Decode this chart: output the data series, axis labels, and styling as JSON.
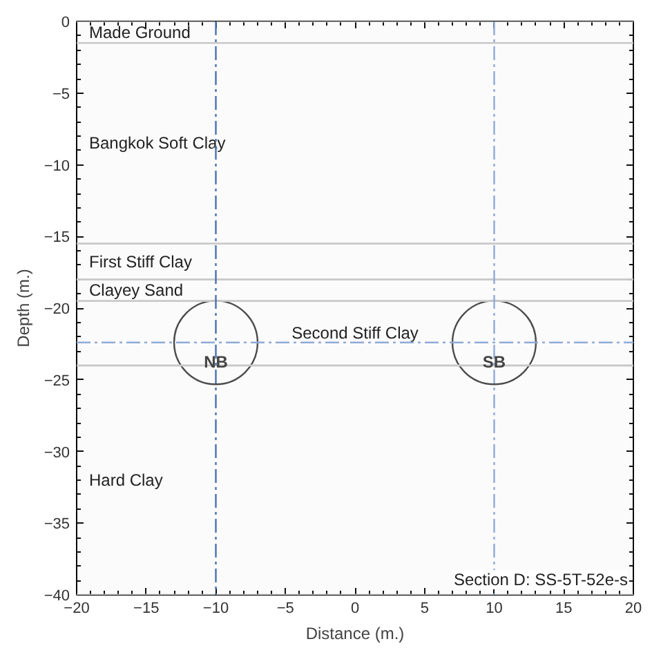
{
  "chart_data": {
    "type": "bubble",
    "xlabel": "Distance (m.)",
    "ylabel": "Depth (m.)",
    "xlim": [
      -20,
      20
    ],
    "ylim": [
      -40,
      0
    ],
    "xticks": [
      -20,
      -15,
      -10,
      -5,
      0,
      5,
      10,
      15,
      20
    ],
    "yticks": [
      -40,
      -35,
      -30,
      -25,
      -20,
      -15,
      -10,
      -5,
      0
    ],
    "series": [
      {
        "color": "#404040",
        "x": [
          -10,
          10
        ],
        "values": [
          -22.4,
          -22.4
        ],
        "sizes": [
          1,
          1
        ],
        "value_labels": [
          "NB",
          "SB"
        ]
      }
    ],
    "bands": [
      {
        "axis": "y",
        "from": 0,
        "to": -1.5,
        "label": "Made Ground",
        "color": "#c8c8c8"
      },
      {
        "axis": "y",
        "from": -1.5,
        "to": -15.5,
        "label": "Bangkok Soft Clay",
        "color": "#c8c8c8"
      },
      {
        "axis": "y",
        "from": -15.5,
        "to": -18,
        "label": "First Stiff Clay",
        "color": "#c8c8c8"
      },
      {
        "axis": "y",
        "from": -18,
        "to": -19.5,
        "label": "Clayey Sand",
        "color": "#c8c8c8"
      },
      {
        "axis": "y",
        "from": -19.5,
        "to": -24,
        "label": "Second Stiff Clay",
        "color": "#c8c8c8"
      },
      {
        "axis": "y",
        "from": -24,
        "to": -40,
        "label": "Hard Clay",
        "color": "#c8c8c8"
      }
    ],
    "ref_lines": [
      {
        "axis": "x",
        "value": -10,
        "color": "#4a72b0",
        "line_style": "dashed"
      },
      {
        "axis": "x",
        "value": 10,
        "color": "#8faad6",
        "line_style": "dashed"
      },
      {
        "axis": "y",
        "value": -22.4,
        "color": "#8faad6",
        "line_style": "dashed"
      }
    ],
    "annotations": [
      "Section D: SS-5T-52e-s"
    ]
  }
}
